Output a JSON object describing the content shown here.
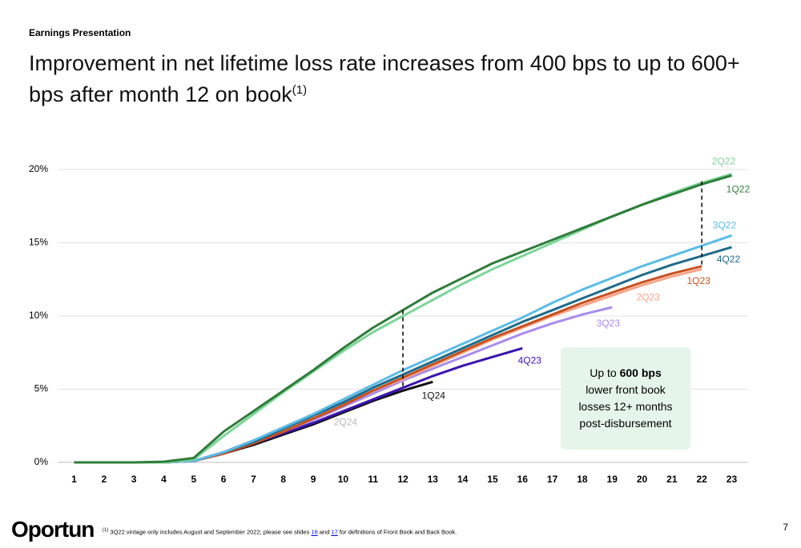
{
  "header": {
    "eyebrow": "Earnings Presentation",
    "title": "Improvement in net lifetime loss rate increases from 400 bps to up to 600+ bps after month 12 on book",
    "title_superscript": "(1)"
  },
  "chart_data": {
    "type": "line",
    "x": [
      1,
      2,
      3,
      4,
      5,
      6,
      7,
      8,
      9,
      10,
      11,
      12,
      13,
      14,
      15,
      16,
      17,
      18,
      19,
      20,
      21,
      22,
      23
    ],
    "xlim": [
      0.45,
      23.55
    ],
    "xticks": [
      1,
      2,
      3,
      4,
      5,
      6,
      7,
      8,
      9,
      10,
      11,
      12,
      13,
      14,
      15,
      16,
      17,
      18,
      19,
      20,
      21,
      22,
      23
    ],
    "ylim": [
      0,
      20
    ],
    "yticks": [
      {
        "value": 0,
        "label": "0%"
      },
      {
        "value": 5,
        "label": "5%"
      },
      {
        "value": 10,
        "label": "10%"
      },
      {
        "value": 15,
        "label": "15%"
      },
      {
        "value": 20,
        "label": "20%"
      }
    ],
    "grid": true,
    "series": [
      {
        "name": "2Q24",
        "color": "#b8b8b8",
        "values": [
          0,
          0,
          0,
          0,
          0.1,
          0.7,
          1.5,
          2.3,
          3.0,
          3.8,
          null,
          null,
          null,
          null,
          null,
          null,
          null,
          null,
          null,
          null,
          null,
          null,
          null
        ]
      },
      {
        "name": "1Q24",
        "color": "#111111",
        "values": [
          0,
          0,
          0,
          0,
          0.1,
          0.6,
          1.2,
          1.9,
          2.6,
          3.4,
          4.2,
          4.9,
          5.5,
          null,
          null,
          null,
          null,
          null,
          null,
          null,
          null,
          null,
          null
        ]
      },
      {
        "name": "4Q23",
        "color": "#3a14b0",
        "values": [
          0,
          0,
          0,
          0,
          0.1,
          0.6,
          1.3,
          2.0,
          2.7,
          3.5,
          4.3,
          5.1,
          5.9,
          6.6,
          7.2,
          7.8,
          null,
          null,
          null,
          null,
          null,
          null,
          null
        ]
      },
      {
        "name": "3Q23",
        "color": "#a78bf0",
        "values": [
          0,
          0,
          0,
          0,
          0.1,
          0.6,
          1.3,
          2.1,
          2.9,
          3.8,
          4.7,
          5.6,
          6.4,
          7.2,
          8.0,
          8.8,
          9.5,
          10.1,
          10.6,
          null,
          null,
          null,
          null
        ]
      },
      {
        "name": "2Q23",
        "color": "#f2a58a",
        "values": [
          0,
          0,
          0,
          0,
          0.1,
          0.6,
          1.4,
          2.2,
          3.0,
          4.0,
          4.9,
          5.7,
          6.6,
          7.5,
          8.4,
          9.2,
          10.0,
          10.7,
          11.4,
          12.1,
          12.7,
          13.2,
          null
        ]
      },
      {
        "name": "1Q23",
        "color": "#c8501e",
        "values": [
          0,
          0,
          0,
          0,
          0.1,
          0.6,
          1.3,
          2.1,
          3.0,
          3.9,
          4.9,
          5.8,
          6.7,
          7.6,
          8.5,
          9.3,
          10.1,
          10.9,
          11.6,
          12.3,
          12.9,
          13.4,
          null
        ]
      },
      {
        "name": "4Q22",
        "color": "#1f6b8a",
        "values": [
          0,
          0,
          0,
          0,
          0.1,
          0.7,
          1.4,
          2.3,
          3.2,
          4.1,
          5.1,
          6.0,
          6.9,
          7.8,
          8.7,
          9.6,
          10.4,
          11.2,
          12.0,
          12.8,
          13.5,
          14.1,
          14.7
        ]
      },
      {
        "name": "3Q22",
        "color": "#5bbbe8",
        "values": [
          0,
          0,
          0,
          0,
          0.1,
          0.7,
          1.5,
          2.4,
          3.3,
          4.3,
          5.3,
          6.3,
          7.2,
          8.1,
          9.0,
          9.9,
          10.9,
          11.8,
          12.6,
          13.4,
          14.1,
          14.8,
          15.5
        ]
      },
      {
        "name": "2Q22",
        "color": "#7ed49a",
        "values": [
          0,
          0,
          0,
          0,
          0.2,
          1.8,
          3.3,
          4.8,
          6.2,
          7.6,
          8.9,
          10.0,
          11.1,
          12.2,
          13.2,
          14.1,
          15.0,
          15.9,
          16.8,
          17.6,
          18.4,
          19.1,
          19.7
        ]
      },
      {
        "name": "1Q22",
        "color": "#2e7d3a",
        "values": [
          0,
          0,
          0,
          0.05,
          0.3,
          2.1,
          3.5,
          4.9,
          6.3,
          7.8,
          9.2,
          10.4,
          11.6,
          12.6,
          13.6,
          14.4,
          15.2,
          16.0,
          16.8,
          17.6,
          18.3,
          19.0,
          19.6
        ]
      }
    ],
    "gap_lines": [
      {
        "x": 12,
        "from": 10.4,
        "to": 5.0
      },
      {
        "x": 22,
        "from": 19.2,
        "to": 13.4
      }
    ]
  },
  "annotation": {
    "prefix": "Up to ",
    "bold": "600 bps",
    "lines": [
      "lower front book",
      "losses 12+ months",
      "post-disbursement"
    ]
  },
  "footer": {
    "marker": "(1)",
    "text1": " 3Q22 vintage only includes August and September 2022; please see slides ",
    "link1": "16",
    "text2": " and ",
    "link2": "17",
    "text3": " for definitions of Front Book and Back Book.",
    "logo": "Oportun",
    "page": "7"
  }
}
